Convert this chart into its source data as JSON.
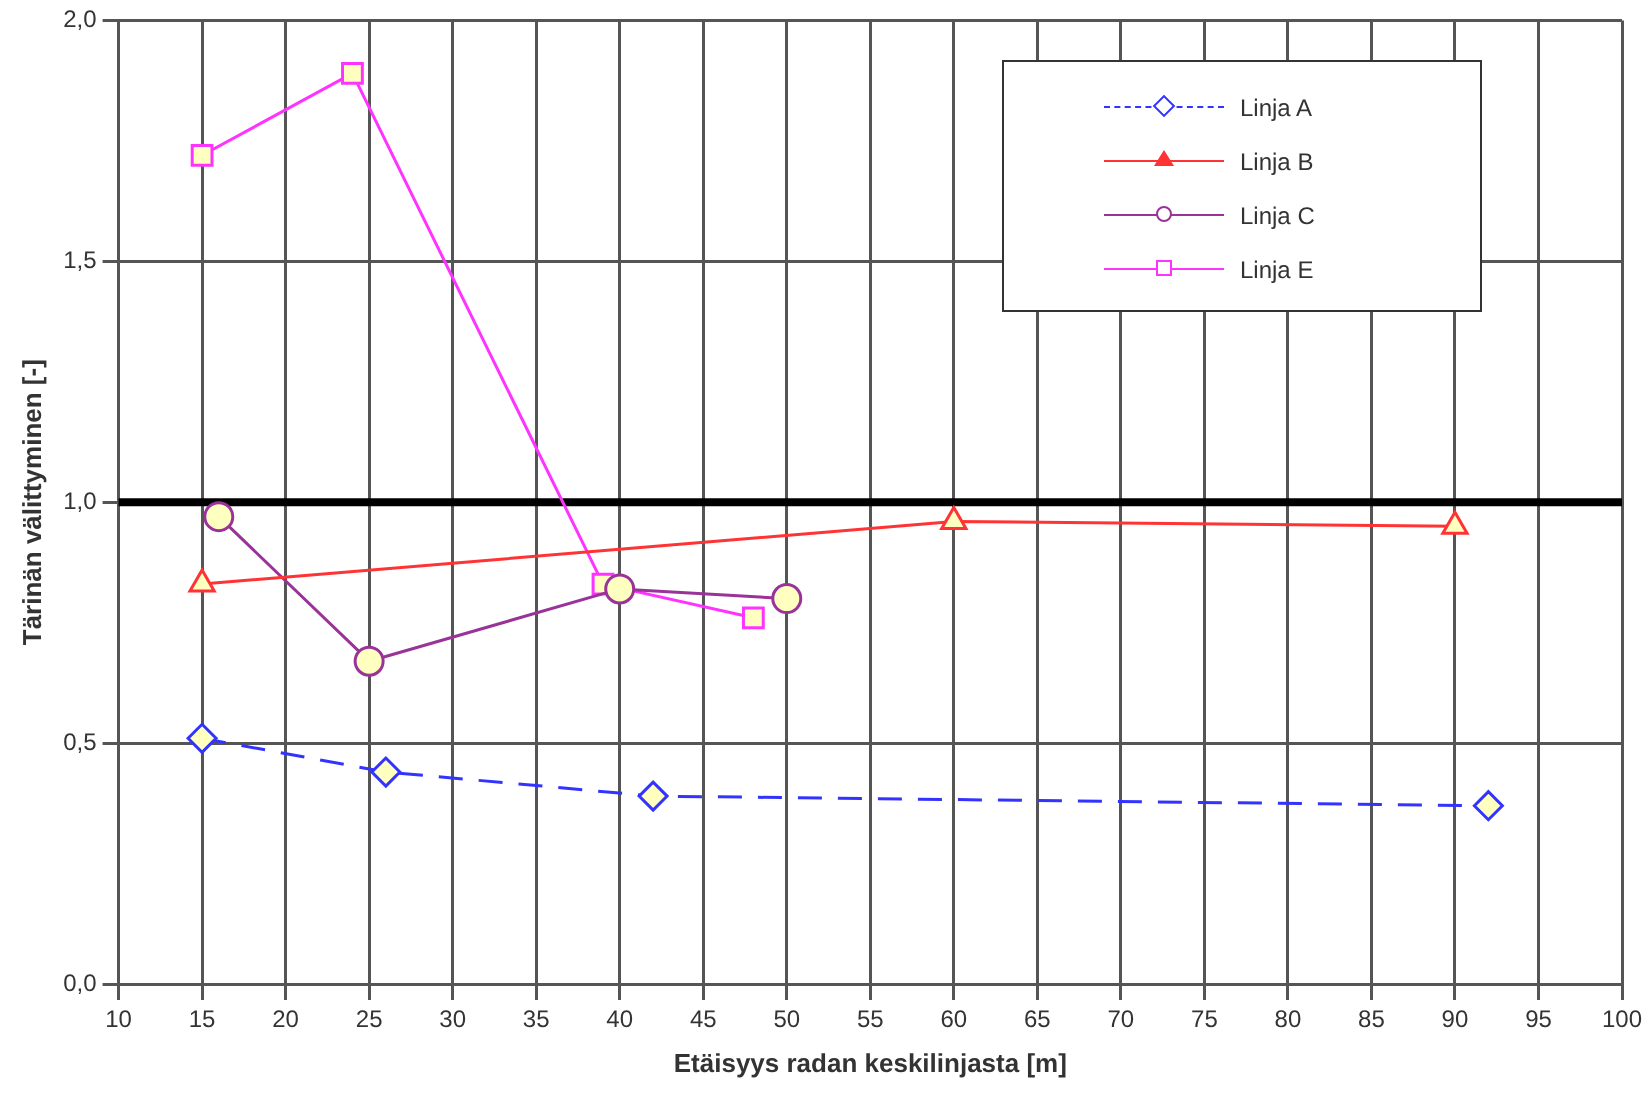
{
  "chart_data": {
    "type": "line",
    "xlabel": "Etäisyys radan keskilinjasta [m]",
    "ylabel": "Tärinän välittyminen [-]",
    "xlim": [
      10,
      100
    ],
    "xticks": [
      10,
      15,
      20,
      25,
      30,
      35,
      40,
      45,
      50,
      55,
      60,
      65,
      70,
      75,
      80,
      85,
      90,
      95,
      100
    ],
    "ylim": [
      0,
      2
    ],
    "yticks": [
      {
        "value": 0,
        "label": "0,0"
      },
      {
        "value": 0.5,
        "label": "0,5"
      },
      {
        "value": 1,
        "label": "1,0"
      },
      {
        "value": 1.5,
        "label": "1,5"
      },
      {
        "value": 2,
        "label": "2,0"
      }
    ],
    "grid": true,
    "legend": "top right",
    "ref_lines": [
      {
        "axis": "y",
        "value": 1,
        "color": "#000000"
      }
    ],
    "series": [
      {
        "name": "Linja A",
        "color": "#3333ff",
        "line_style": "dashed",
        "marker": "diamond",
        "x": [
          15,
          26,
          42,
          92
        ],
        "values": [
          0.51,
          0.44,
          0.39,
          0.37
        ]
      },
      {
        "name": "Linja B",
        "color": "#ff3333",
        "line_style": "solid",
        "marker": "triangle",
        "x": [
          15,
          60,
          90
        ],
        "values": [
          0.83,
          0.96,
          0.95
        ]
      },
      {
        "name": "Linja C",
        "color": "#993399",
        "line_style": "solid",
        "marker": "circle",
        "x": [
          16,
          25,
          40,
          50
        ],
        "values": [
          0.97,
          0.67,
          0.82,
          0.8
        ]
      },
      {
        "name": "Linja E",
        "color": "#ff33ff",
        "line_style": "solid",
        "marker": "square",
        "x": [
          15,
          24,
          39,
          48
        ],
        "values": [
          1.72,
          1.89,
          0.83,
          0.76
        ]
      }
    ]
  }
}
